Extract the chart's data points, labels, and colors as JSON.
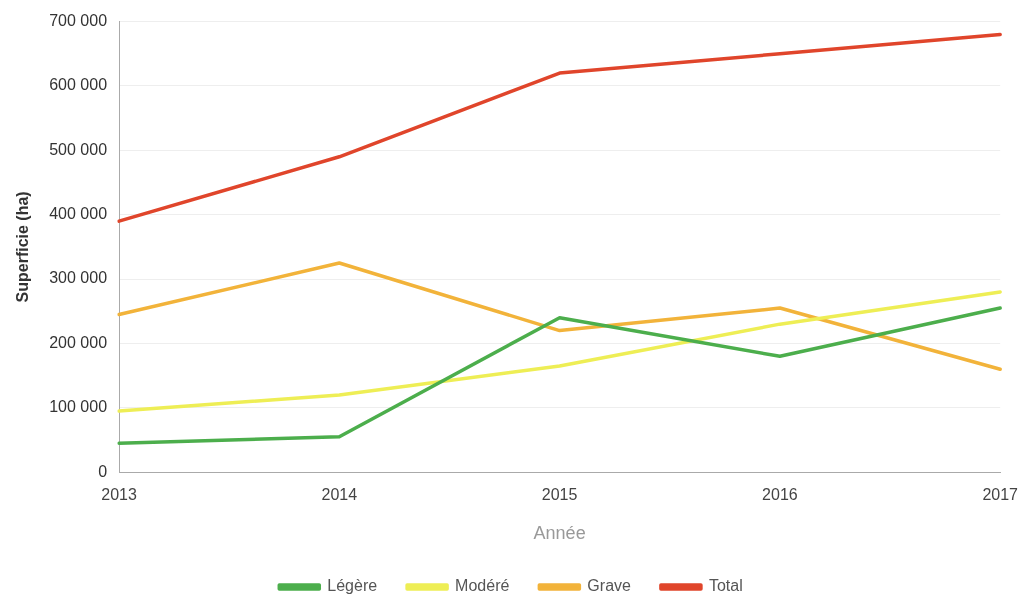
{
  "chart_data": {
    "type": "line",
    "xlabel": "Année",
    "ylabel": "Superficie (ha)",
    "categories": [
      "2013",
      "2014",
      "2015",
      "2016",
      "2017"
    ],
    "series": [
      {
        "name": "Légère",
        "color": "#4cae4c",
        "values": [
          45000,
          55000,
          240000,
          180000,
          255000
        ]
      },
      {
        "name": "Modéré",
        "color": "#eeee55",
        "values": [
          95000,
          120000,
          165000,
          230000,
          280000
        ]
      },
      {
        "name": "Grave",
        "color": "#f2b33a",
        "values": [
          245000,
          325000,
          220000,
          255000,
          160000
        ]
      },
      {
        "name": "Total",
        "color": "#e0452b",
        "values": [
          390000,
          490000,
          620000,
          650000,
          680000
        ]
      }
    ],
    "ylim": [
      0,
      700000
    ],
    "yticks": [
      0,
      {
        "value": 100000,
        "label": "100 000"
      },
      {
        "value": 200000,
        "label": "200 000"
      },
      {
        "value": 300000,
        "label": "300 000"
      },
      {
        "value": 400000,
        "label": "400 000"
      },
      {
        "value": 500000,
        "label": "500 000"
      },
      {
        "value": 600000,
        "label": "600 000"
      },
      {
        "value": 700000,
        "label": "700 000"
      }
    ],
    "grid": "y",
    "legend": "bottom",
    "marker": "none",
    "line_style": "solid"
  }
}
